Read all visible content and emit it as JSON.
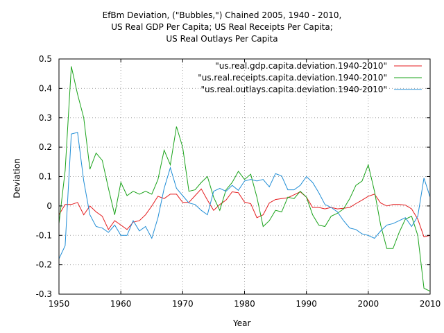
{
  "chart_data": {
    "type": "line",
    "title_lines": [
      "EfBm Deviation, (\"Bubbles,\") Chained 2005, 1940 - 2010,",
      "US Real GDP Per Capita; US Real Receipts Per Capita;",
      "US Real Outlays Per Capita"
    ],
    "xlabel": "Year",
    "ylabel": "Deviation",
    "xlim": [
      1950,
      2010
    ],
    "ylim": [
      -0.3,
      0.5
    ],
    "xticks": [
      1950,
      1960,
      1970,
      1980,
      1990,
      2000,
      2010
    ],
    "yticks": [
      -0.3,
      -0.2,
      -0.1,
      0,
      0.1,
      0.2,
      0.3,
      0.4,
      0.5
    ],
    "grid": true,
    "legend_position": "top-right",
    "x": [
      1950,
      1951,
      1952,
      1953,
      1954,
      1955,
      1956,
      1957,
      1958,
      1959,
      1960,
      1961,
      1962,
      1963,
      1964,
      1965,
      1966,
      1967,
      1968,
      1969,
      1970,
      1971,
      1972,
      1973,
      1974,
      1975,
      1976,
      1977,
      1978,
      1979,
      1980,
      1981,
      1982,
      1983,
      1984,
      1985,
      1986,
      1987,
      1988,
      1989,
      1990,
      1991,
      1992,
      1993,
      1994,
      1995,
      1996,
      1997,
      1998,
      1999,
      2000,
      2001,
      2002,
      2003,
      2004,
      2005,
      2006,
      2007,
      2008,
      2009,
      2010
    ],
    "series": [
      {
        "name": "\"us.real.gdp.capita.deviation.1940-2010\"",
        "color": "#e41a1c",
        "values": [
          -0.03,
          0.005,
          0.005,
          0.012,
          -0.03,
          0.0,
          -0.02,
          -0.035,
          -0.08,
          -0.05,
          -0.065,
          -0.08,
          -0.055,
          -0.05,
          -0.03,
          0.0,
          0.033,
          0.025,
          0.04,
          0.04,
          0.012,
          0.012,
          0.035,
          0.058,
          0.02,
          -0.015,
          0.005,
          0.02,
          0.048,
          0.045,
          0.013,
          0.008,
          -0.04,
          -0.03,
          0.01,
          0.022,
          0.025,
          0.028,
          0.038,
          0.048,
          0.03,
          -0.005,
          -0.005,
          -0.01,
          -0.005,
          -0.01,
          -0.008,
          -0.005,
          0.008,
          0.02,
          0.033,
          0.04,
          0.01,
          0.0,
          0.005,
          0.005,
          0.003,
          -0.01,
          -0.045,
          -0.105,
          -0.1
        ]
      },
      {
        "name": "\"us.real.receipts.capita.deviation.1940-2010\"",
        "color": "#1aa31a",
        "values": [
          -0.06,
          0.12,
          0.475,
          0.38,
          0.3,
          0.125,
          0.18,
          0.155,
          0.06,
          -0.03,
          0.08,
          0.035,
          0.05,
          0.04,
          0.05,
          0.04,
          0.09,
          0.19,
          0.14,
          0.27,
          0.2,
          0.05,
          0.055,
          0.08,
          0.1,
          0.03,
          -0.015,
          0.055,
          0.08,
          0.118,
          0.09,
          0.108,
          0.03,
          -0.07,
          -0.05,
          -0.015,
          -0.02,
          0.03,
          0.025,
          0.05,
          0.03,
          -0.03,
          -0.065,
          -0.07,
          -0.035,
          -0.025,
          -0.01,
          0.025,
          0.07,
          0.085,
          0.14,
          0.05,
          -0.065,
          -0.145,
          -0.145,
          -0.09,
          -0.045,
          -0.035,
          -0.1,
          -0.28,
          -0.29
        ]
      },
      {
        "name": "\"us.real.outlays.capita.deviation.1940-2010\"",
        "color": "#1f8dd6",
        "values": [
          -0.18,
          -0.135,
          0.245,
          0.25,
          0.085,
          -0.03,
          -0.07,
          -0.075,
          -0.09,
          -0.065,
          -0.1,
          -0.1,
          -0.05,
          -0.085,
          -0.07,
          -0.11,
          -0.04,
          0.06,
          0.13,
          0.06,
          0.035,
          0.01,
          0.005,
          -0.015,
          -0.03,
          0.05,
          0.06,
          0.05,
          0.07,
          0.053,
          0.085,
          0.09,
          0.085,
          0.09,
          0.065,
          0.11,
          0.102,
          0.055,
          0.055,
          0.07,
          0.1,
          0.08,
          0.045,
          0.005,
          -0.005,
          -0.02,
          -0.05,
          -0.075,
          -0.08,
          -0.095,
          -0.1,
          -0.11,
          -0.085,
          -0.065,
          -0.06,
          -0.05,
          -0.04,
          -0.07,
          -0.035,
          0.095,
          0.03
        ]
      }
    ]
  }
}
